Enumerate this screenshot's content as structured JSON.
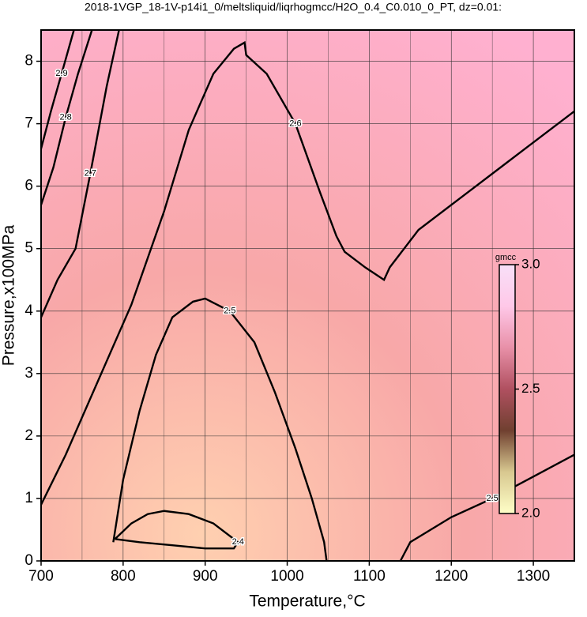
{
  "chart_data": {
    "type": "contour",
    "title": "2018-1VGP_18-1V-p14i1_0/meltsliquid/liqrhogmcc/H2O_0.4_C0.010_0_PT, dz=0.01:",
    "x_label": "Temperature,°C",
    "y_label": "Pressure,x100MPa",
    "xlim": [
      700,
      1350
    ],
    "ylim": [
      0,
      8.5
    ],
    "xticks": [
      700,
      800,
      900,
      1000,
      1100,
      1200,
      1300
    ],
    "yticks": [
      0,
      1,
      2,
      3,
      4,
      5,
      6,
      7,
      8
    ],
    "grid": true,
    "contours": [
      {
        "level": 2.6,
        "x": [
          700,
          730,
          770,
          810,
          850,
          880,
          910,
          935,
          948,
          950,
          975,
          1010,
          1040,
          1060,
          1070,
          1095,
          1118,
          1125,
          1160,
          1220,
          1290,
          1350
        ],
        "y": [
          0.9,
          1.7,
          2.9,
          4.1,
          5.6,
          6.9,
          7.8,
          8.2,
          8.3,
          8.1,
          7.8,
          7.0,
          5.9,
          5.2,
          4.95,
          4.7,
          4.5,
          4.7,
          5.3,
          5.9,
          6.6,
          7.2
        ]
      },
      {
        "level": 2.5,
        "x": [
          788,
          800,
          820,
          840,
          860,
          885,
          900,
          930,
          960,
          985,
          1010,
          1030,
          1045,
          1048
        ],
        "y": [
          0.3,
          1.3,
          2.4,
          3.3,
          3.9,
          4.15,
          4.2,
          4.0,
          3.5,
          2.7,
          1.8,
          1.0,
          0.3,
          0
        ]
      },
      {
        "level": 2.4,
        "x": [
          790,
          810,
          830,
          850,
          880,
          910,
          940,
          935,
          900,
          860,
          820,
          790
        ],
        "y": [
          0.35,
          0.6,
          0.75,
          0.8,
          0.75,
          0.6,
          0.3,
          0.2,
          0.2,
          0.25,
          0.3,
          0.35
        ]
      },
      {
        "level": 2.5,
        "x": [
          1138,
          1150,
          1200,
          1250,
          1300,
          1350
        ],
        "y": [
          0,
          0.3,
          0.7,
          1.0,
          1.35,
          1.7
        ]
      },
      {
        "level": 2.7,
        "x": [
          700,
          720,
          742,
          760,
          780,
          795
        ],
        "y": [
          3.9,
          4.5,
          5.0,
          6.2,
          7.6,
          8.5
        ]
      },
      {
        "level": 2.8,
        "x": [
          700,
          715,
          730,
          745,
          762
        ],
        "y": [
          5.7,
          6.3,
          7.1,
          7.8,
          8.5
        ]
      },
      {
        "level": 2.9,
        "x": [
          700,
          712,
          725,
          740
        ],
        "y": [
          6.6,
          7.2,
          7.8,
          8.5
        ]
      }
    ],
    "colorbar": {
      "label": "gmcc",
      "lim": [
        2.0,
        3.0
      ],
      "ticks": [
        {
          "value": 2.0,
          "label": "2.0"
        },
        2.5,
        {
          "value": 3.0,
          "label": "3.0"
        }
      ],
      "colors": [
        "#ffffc8",
        "#d8c890",
        "#704030",
        "#b05060",
        "#e890a8",
        "#ffc8e8",
        "#f8e0f8"
      ]
    }
  }
}
